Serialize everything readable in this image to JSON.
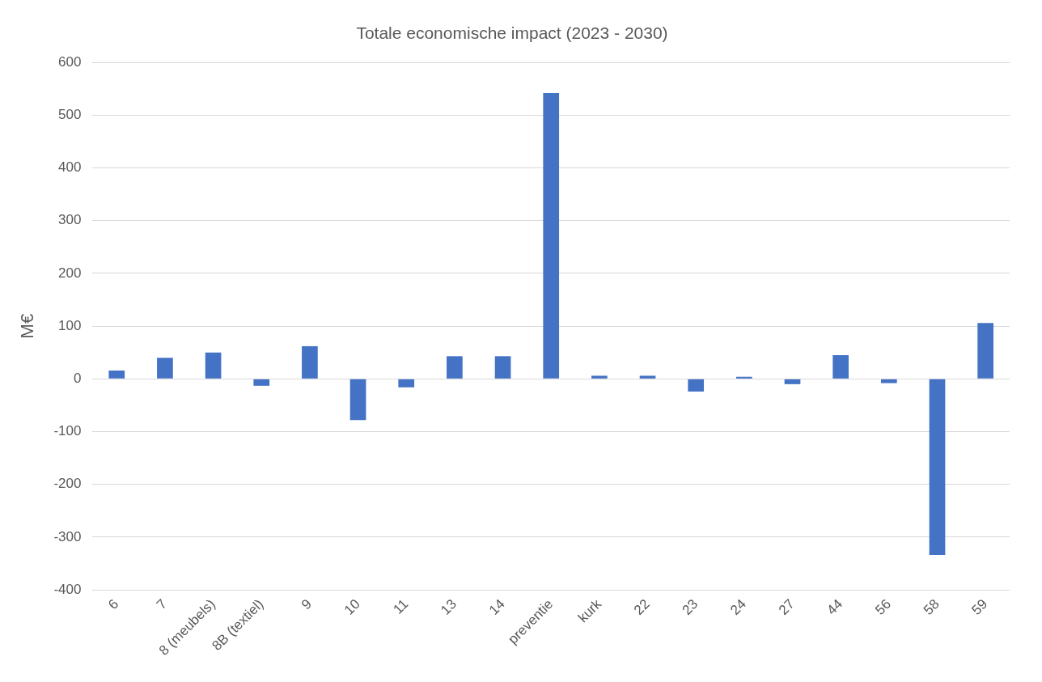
{
  "chart_data": {
    "type": "bar",
    "title": "Totale economische impact (2023 - 2030)",
    "ylabel": "M€",
    "categories": [
      "6",
      "7",
      "8 (meubels)",
      "8B (textiel)",
      "9",
      "10",
      "11",
      "13",
      "14",
      "preventie",
      "kurk",
      "22",
      "23",
      "24",
      "27",
      "44",
      "56",
      "58",
      "59"
    ],
    "values": [
      16,
      40,
      50,
      -13,
      62,
      -78,
      -16,
      43,
      43,
      542,
      6,
      6,
      -24,
      4,
      -10,
      45,
      -8,
      -334,
      106
    ],
    "color": "#4472c4",
    "ylim": [
      -400,
      600
    ],
    "yticks": [
      -400,
      -300,
      -200,
      -100,
      0,
      100,
      200,
      300,
      400,
      500,
      600
    ],
    "grid": "y",
    "legend": false
  }
}
